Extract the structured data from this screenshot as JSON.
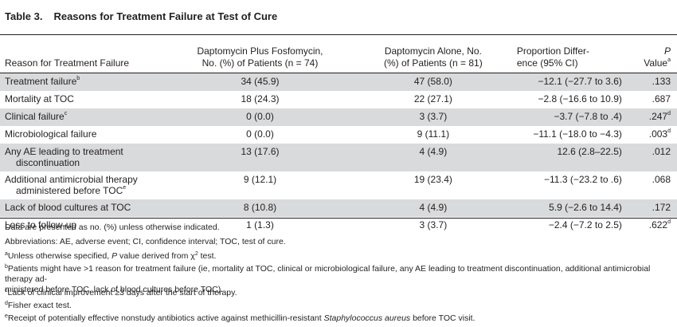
{
  "title": {
    "number": "Table 3.",
    "text": "Reasons for Treatment Failure at Test of Cure"
  },
  "headers": {
    "reason": "Reason for Treatment Failure",
    "combo_line1": "Daptomycin Plus Fosfomycin,",
    "combo_line2": "No. (%) of Patients (n = 74)",
    "alone_line1": "Daptomycin Alone, No.",
    "alone_line2": "(%) of Patients (n = 81)",
    "diff_line1": "Proportion Differ-",
    "diff_line2": "ence (95% CI)",
    "p_line1": "P",
    "p_line2": "Value",
    "p_sup": "a"
  },
  "rows": [
    {
      "reason": "Treatment failure",
      "reason_sup": "b",
      "reason_line2": "",
      "combo": "34 (45.9)",
      "alone": "47 (58.0)",
      "diff": "−12.1 (−27.7 to 3.6)",
      "p": ".133",
      "p_sup": "",
      "shaded": true
    },
    {
      "reason": "Mortality at TOC",
      "reason_sup": "",
      "reason_line2": "",
      "combo": "18 (24.3)",
      "alone": "22 (27.1)",
      "diff": "−2.8 (−16.6 to 10.9)",
      "p": ".687",
      "p_sup": "",
      "shaded": false
    },
    {
      "reason": "Clinical failure",
      "reason_sup": "c",
      "reason_line2": "",
      "combo": "0 (0.0)",
      "alone": "3 (3.7)",
      "diff": "−3.7 (−7.8 to .4)",
      "p": ".247",
      "p_sup": "d",
      "shaded": true
    },
    {
      "reason": "Microbiological failure",
      "reason_sup": "",
      "reason_line2": "",
      "combo": "0 (0.0)",
      "alone": "9 (11.1)",
      "diff": "−11.1 (−18.0 to −4.3)",
      "p": ".003",
      "p_sup": "d",
      "shaded": false
    },
    {
      "reason": "Any AE leading to treatment",
      "reason_sup": "",
      "reason_line2": "discontinuation",
      "reason_line2_sup": "",
      "combo": "13 (17.6)",
      "alone": "4 (4.9)",
      "diff": "12.6 (2.8–22.5)",
      "p": ".012",
      "p_sup": "",
      "shaded": true
    },
    {
      "reason": "Additional antimicrobial therapy",
      "reason_sup": "",
      "reason_line2": "administered before TOC",
      "reason_line2_sup": "e",
      "combo": "9 (12.1)",
      "alone": "19 (23.4)",
      "diff": "−11.3 (−23.2 to .6)",
      "p": ".068",
      "p_sup": "",
      "shaded": false
    },
    {
      "reason": "Lack of blood cultures at TOC",
      "reason_sup": "",
      "reason_line2": "",
      "combo": "8 (10.8)",
      "alone": "4 (4.9)",
      "diff": "5.9 (−2.6 to 14.4)",
      "p": ".172",
      "p_sup": "",
      "shaded": true
    },
    {
      "reason": "Loss to follow-up",
      "reason_sup": "",
      "reason_line2": "",
      "combo": "1 (1.3)",
      "alone": "3 (3.7)",
      "diff": "−2.4 (−7.2 to 2.5)",
      "p": ".622",
      "p_sup": "d",
      "shaded": false
    }
  ],
  "footnotes": {
    "f0": "Data are presented as no. (%) unless otherwise indicated.",
    "f1": "Abbreviations: AE, adverse event; CI, confidence interval; TOC, test of cure.",
    "fa_sup": "a",
    "fa_pre": "Unless otherwise specified, ",
    "fa_p": "P",
    "fa_post": " value derived from χ",
    "fa_sq": "2",
    "fa_end": " test.",
    "fb_sup": "b",
    "fb_line1": "Patients might have >1 reason for treatment failure (ie, mortality at TOC, clinical or microbiological failure, any AE leading to treatment discontinuation, additional antimicrobial therapy ad-",
    "fb_line2": "ministered before TOC, lack of blood cultures before TOC).",
    "fc_sup": "c",
    "fc": "Lack of clinical improvement ≥3 days after the start of therapy.",
    "fd_sup": "d",
    "fd": "Fisher exact test.",
    "fe_sup": "e",
    "fe_pre": "Receipt of potentially effective nonstudy antibiotics active against methicillin-resistant ",
    "fe_italic": "Staphylococcus aureus",
    "fe_post": " before TOC visit."
  }
}
